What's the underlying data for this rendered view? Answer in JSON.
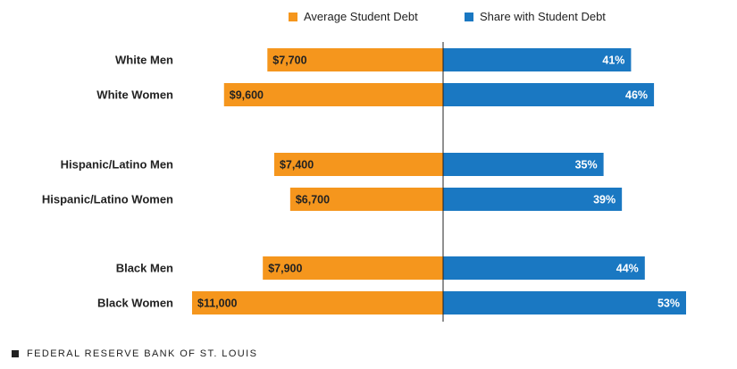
{
  "chart_data": {
    "type": "bar",
    "orientation": "horizontal-diverging",
    "categories": [
      "White Men",
      "White Women",
      "Hispanic/Latino Men",
      "Hispanic/Latino Women",
      "Black Men",
      "Black Women"
    ],
    "groups": [
      [
        "White Men",
        "White Women"
      ],
      [
        "Hispanic/Latino Men",
        "Hispanic/Latino Women"
      ],
      [
        "Black Men",
        "Black Women"
      ]
    ],
    "series": [
      {
        "name": "Average Student Debt",
        "color": "#f5961d",
        "direction": "left",
        "values": [
          7700,
          9600,
          7400,
          6700,
          7900,
          11000
        ],
        "labels": [
          "$7,700",
          "$9,600",
          "$7,400",
          "$6,700",
          "$7,900",
          "$11,000"
        ],
        "max": 11000
      },
      {
        "name": "Share with Student Debt",
        "color": "#1a78c2",
        "direction": "right",
        "values": [
          41,
          46,
          35,
          39,
          44,
          53
        ],
        "labels": [
          "41%",
          "46%",
          "35%",
          "39%",
          "44%",
          "53%"
        ],
        "max": 53
      }
    ]
  },
  "legend": {
    "items": [
      {
        "label": "Average Student Debt",
        "color": "#f5961d"
      },
      {
        "label": "Share with Student Debt",
        "color": "#1a78c2"
      }
    ]
  },
  "footer": {
    "source": "FEDERAL RESERVE BANK OF ST. LOUIS"
  }
}
